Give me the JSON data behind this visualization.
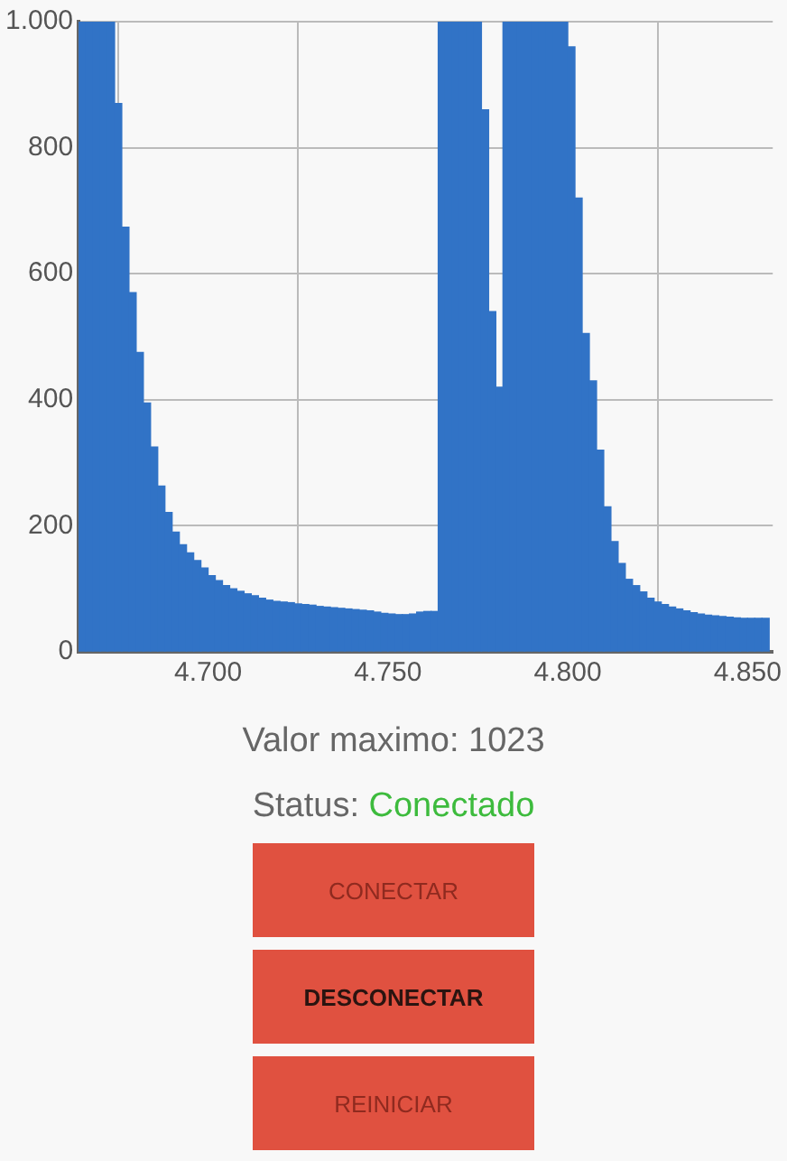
{
  "chart_data": {
    "type": "bar",
    "color": "#3173c6",
    "grid": true,
    "x": [
      4665,
      4667,
      4669,
      4671,
      4673,
      4675,
      4677,
      4679,
      4681,
      4683,
      4685,
      4687,
      4689,
      4691,
      4693,
      4695,
      4697,
      4699,
      4701,
      4703,
      4705,
      4707,
      4709,
      4711,
      4713,
      4715,
      4717,
      4719,
      4721,
      4723,
      4725,
      4727,
      4729,
      4731,
      4733,
      4735,
      4737,
      4739,
      4741,
      4743,
      4745,
      4747,
      4749,
      4751,
      4753,
      4755,
      4757,
      4759,
      4761,
      4763,
      4765,
      4767,
      4769,
      4771,
      4773,
      4775,
      4777,
      4779,
      4781,
      4783,
      4785,
      4787,
      4789,
      4791,
      4793,
      4795,
      4797,
      4799,
      4801,
      4803,
      4805,
      4807,
      4809,
      4811,
      4813,
      4815,
      4817,
      4819,
      4821,
      4823,
      4825,
      4827,
      4829,
      4831,
      4833,
      4835,
      4837,
      4839,
      4841,
      4843,
      4845,
      4847,
      4849,
      4851,
      4853,
      4855
    ],
    "values": [
      1000,
      1000,
      1000,
      1000,
      1000,
      870,
      674,
      570,
      475,
      395,
      325,
      263,
      221,
      190,
      170,
      157,
      145,
      133,
      121,
      113,
      105,
      100,
      96,
      92,
      89,
      85,
      82,
      80,
      79,
      78,
      76,
      75,
      74,
      72,
      71,
      70,
      69,
      68,
      67,
      66,
      65,
      63,
      61,
      60,
      59,
      59,
      60,
      63,
      64,
      64,
      1000,
      1000,
      1000,
      1000,
      1000,
      1000,
      860,
      540,
      420,
      1000,
      1000,
      1000,
      1000,
      1000,
      1000,
      1000,
      1000,
      1000,
      960,
      720,
      505,
      430,
      320,
      230,
      175,
      140,
      115,
      105,
      95,
      85,
      79,
      75,
      71,
      68,
      65,
      62,
      60,
      58,
      57,
      56,
      55,
      54,
      53,
      53,
      53,
      53
    ],
    "xlim": [
      4664,
      4857
    ],
    "xticks": [
      {
        "value": 4700,
        "label": "4.700"
      },
      {
        "value": 4750,
        "label": "4.750"
      },
      {
        "value": 4800,
        "label": "4.800"
      },
      {
        "value": 4850,
        "label": "4.850"
      }
    ],
    "ylim": [
      0,
      1000
    ],
    "yticks": [
      0,
      200,
      400,
      600,
      800,
      {
        "value": 1000,
        "label": "1.000"
      }
    ],
    "annotations": [
      "Valor maximo: 1023",
      "Status:",
      "Conectado",
      "CONECTAR",
      "DESCONECTAR",
      "REINICIAR"
    ]
  }
}
